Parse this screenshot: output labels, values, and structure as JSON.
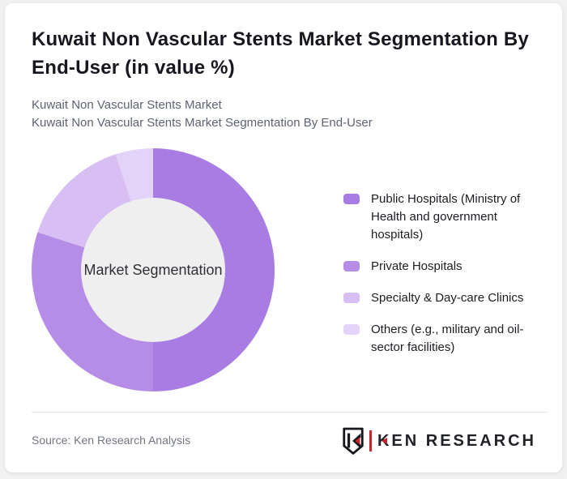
{
  "page": {
    "background": "#f1f1f2",
    "card_background": "#ffffff"
  },
  "header": {
    "title": "Kuwait Non Vascular Stents Market Segmentation By End-User (in value %)",
    "subtitle_lines": [
      "Kuwait Non Vascular Stents Market",
      "Kuwait Non Vascular Stents Market Segmentation By End-User"
    ]
  },
  "chart_data": {
    "type": "pie",
    "variant": "donut",
    "center_label": "Market Segmentation",
    "start_angle_deg": 0,
    "direction": "clockwise",
    "values_estimated_from_angles": true,
    "hole_color": "#f0eff0",
    "legend_position": "right",
    "segments": [
      {
        "label": "Public Hospitals (Ministry of Health and government hospitals)",
        "value_pct": 50,
        "color": "#a87ce2"
      },
      {
        "label": "Private Hospitals",
        "value_pct": 30,
        "color": "#b68de6"
      },
      {
        "label": "Specialty & Day-care Clinics",
        "value_pct": 15,
        "color": "#d8bff3"
      },
      {
        "label": "Others (e.g., military and oil-sector facilities)",
        "value_pct": 5,
        "color": "#e4d3f8"
      }
    ]
  },
  "footer": {
    "source_text": "Source: Ken Research Analysis",
    "logo": {
      "brand": "KEN RESEARCH",
      "k_letter": "K",
      "text_after_k": "EN RESEARCH",
      "accent_color": "#c5262c"
    }
  }
}
